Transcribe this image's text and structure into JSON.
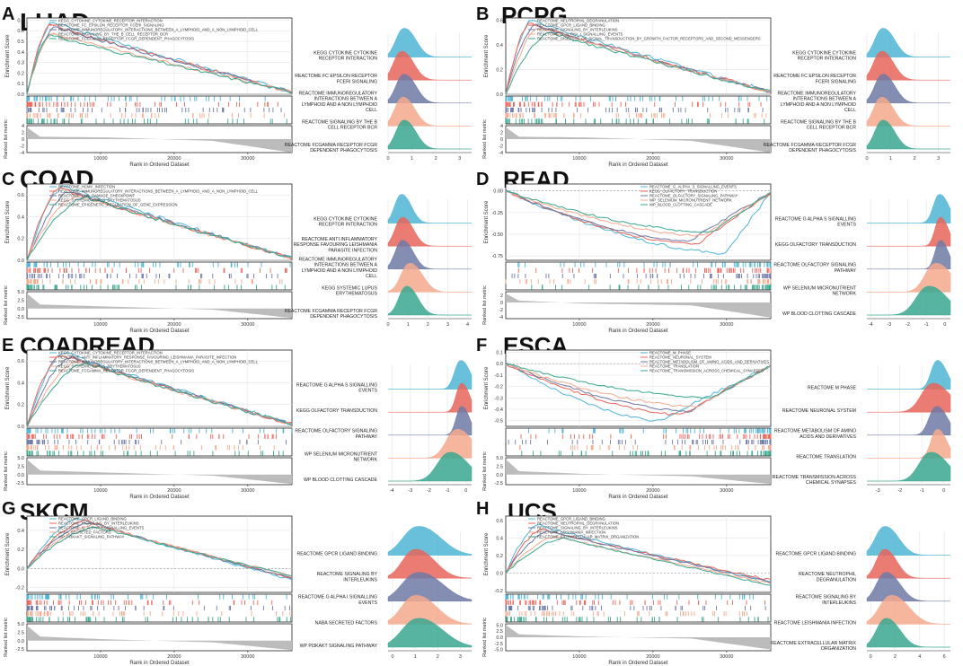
{
  "colors": {
    "palette": [
      "#4fb5d5",
      "#e8655a",
      "#6e7aa6",
      "#f4a98d",
      "#3aa78f"
    ],
    "grid": "#e3e3e3",
    "metric": "#bcbcbc"
  },
  "common": {
    "es_label": "Enrichment Score",
    "rl_label": "Ranked list metric",
    "x_label": "Rank in Ordered Dataset",
    "x_ticks": [
      10000,
      20000,
      30000
    ],
    "x_max": 36000
  },
  "chart_data": [
    {
      "letter": "A",
      "title": "LUAD",
      "type": "line",
      "es_ticks": [
        "0.7",
        "0.6",
        "0.5",
        "0.4",
        "0.3",
        "0.2",
        "0.1",
        "0.0"
      ],
      "es_range": [
        0,
        0.72
      ],
      "rl_ticks": [
        "4",
        "2",
        "0",
        "-2",
        "-4"
      ],
      "rl_range": [
        -4,
        4
      ],
      "metric_profile": [
        3.5,
        0.7,
        0.5,
        -0.5,
        -4
      ],
      "series": [
        {
          "name": "KEGG_CYTOKINE_CYTOKINE_RECEPTOR_INTERACTION",
          "ridge_label": "KEGG CYTOKINE CYTOKINE RECEPTOR INTERACTION",
          "peak": 0.68,
          "peak_at": 3500,
          "end": 0.02,
          "ridge_center": 0.6,
          "ridge_width": 0.35
        },
        {
          "name": "REACTOME_FC_EPSILON_RECEPTOR_FCERI_SIGNALING",
          "ridge_label": "REACTOME FC EPSILON RECEPTOR FCERI SIGNALING",
          "peak": 0.66,
          "peak_at": 3200,
          "end": 0.02,
          "ridge_center": 0.5,
          "ridge_width": 0.35
        },
        {
          "name": "REACTOME_IMMUNOREGULATORY_INTERACTIONS_BETWEEN_A_LYMPHOID_AND_A_NON_LYMPHOID_CELL",
          "ridge_label": "REACTOME IMMUNOREGULATORY INTERACTIONS BETWEEN A LYMPHOID AND A NON LYMPHOID CELL",
          "peak": 0.64,
          "peak_at": 3800,
          "end": 0.02,
          "ridge_center": 0.6,
          "ridge_width": 0.35
        },
        {
          "name": "REACTOME_SIGNALING_BY_THE_B_CELL_RECEPTOR_BCR",
          "ridge_label": "REACTOME SIGNALING BY THE B CELL RECEPTOR BCR",
          "peak": 0.58,
          "peak_at": 3500,
          "end": 0.02,
          "ridge_center": 0.55,
          "ridge_width": 0.35
        },
        {
          "name": "REACTOME_FCGAMMA_RECEPTOR_FCGR_DEPENDENT_PHAGOCYTOSIS",
          "ridge_label": "REACTOME FCGAMMA RECEPTOR FCGR DEPENDENT PHAGOCYTOSIS",
          "peak": 0.56,
          "peak_at": 3000,
          "end": 0.02,
          "ridge_center": 0.6,
          "ridge_width": 0.35
        }
      ],
      "ridge_ticks": [
        "0",
        "1",
        "2",
        "3"
      ],
      "ridge_range": [
        0,
        3.5
      ]
    },
    {
      "letter": "B",
      "title": "PCPG",
      "type": "line",
      "es_ticks": [
        "0.6",
        "0.4",
        "0.2",
        "0.0"
      ],
      "es_range": [
        0,
        0.62
      ],
      "rl_ticks": [
        "4",
        "2",
        "0",
        "-2",
        "-4"
      ],
      "rl_range": [
        -4,
        4
      ],
      "metric_profile": [
        3.5,
        0.7,
        0.5,
        -0.5,
        -4
      ],
      "series": [
        {
          "name": "REACTOME_NEUTROPHIL_DEGRANULATION",
          "ridge_label": "KEGG CYTOKINE CYTOKINE RECEPTOR INTERACTION",
          "peak": 0.6,
          "peak_at": 3500,
          "end": 0.02,
          "ridge_center": 0.6,
          "ridge_width": 0.35
        },
        {
          "name": "REACTOME_GPCR_LIGAND_BINDING",
          "ridge_label": "REACTOME FC EPSILON RECEPTOR FCERI SIGNALING",
          "peak": 0.58,
          "peak_at": 3200,
          "end": 0.02,
          "ridge_center": 0.55,
          "ridge_width": 0.35
        },
        {
          "name": "REACTOME_SIGNALING_BY_INTERLEUKINS",
          "ridge_label": "REACTOME IMMUNOREGULATORY INTERACTIONS BETWEEN A LYMPHOID AND A NON LYMPHOID CELL",
          "peak": 0.56,
          "peak_at": 4000,
          "end": 0.02,
          "ridge_center": 0.6,
          "ridge_width": 0.35
        },
        {
          "name": "REACTOME_G_ALPHA_I_SIGNALLING_EVENTS",
          "ridge_label": "REACTOME SIGNALING BY THE B CELL RECEPTOR BCR",
          "peak": 0.54,
          "peak_at": 4500,
          "end": 0.02,
          "ridge_center": 0.55,
          "ridge_width": 0.35
        },
        {
          "name": "REACTOME_DISEASES_OF_SIGNAL_TRANSDUCTION_BY_GROWTH_FACTOR_RECEPTORS_AND_SECOND_MESSENGERS",
          "ridge_label": "REACTOME FCGAMMA RECEPTOR FCGR DEPENDENT PHAGOCYTOSIS",
          "peak": 0.5,
          "peak_at": 6000,
          "end": 0.02,
          "ridge_center": 0.6,
          "ridge_width": 0.35
        }
      ],
      "ridge_ticks": [
        "0",
        "1",
        "2",
        "3"
      ],
      "ridge_range": [
        0,
        3.5
      ]
    },
    {
      "letter": "C",
      "title": "COAD",
      "type": "line",
      "es_ticks": [
        "0.6",
        "0.4",
        "0.2",
        "0.0"
      ],
      "es_range": [
        0,
        0.7
      ],
      "rl_ticks": [
        "5.0",
        "2.5",
        "0.0",
        "-2.5"
      ],
      "rl_range": [
        -3,
        5
      ],
      "metric_profile": [
        4.5,
        1.2,
        0.6,
        -0.3,
        -2.8
      ],
      "series": [
        {
          "name": "REACTOME_HCMV_INFECTION",
          "ridge_label": "KEGG CYTOKINE CYTOKINE RECEPTOR INTERACTION",
          "peak": 0.68,
          "peak_at": 5000,
          "end": 0.02,
          "ridge_center": 0.6,
          "ridge_width": 0.35
        },
        {
          "name": "REACTOME_IMMUNOREGULATORY_INTERACTIONS_BETWEEN_A_LYMPHOID_AND_A_NON_LYMPHOID_CELL",
          "ridge_label": "REACTOME ANTI INFLAMMATORY RESPONSE FAVOURING LEISHMANIA PARASITE INFECTION",
          "peak": 0.66,
          "peak_at": 4500,
          "end": 0.02,
          "ridge_center": 0.65,
          "ridge_width": 0.38
        },
        {
          "name": "REACTOME_DNA_DAMAGE_CHECKPOINT",
          "ridge_label": "REACTOME IMMUNOREGULATORY INTERACTIONS BETWEEN A LYMPHOID AND A NON LYMPHOID CELL",
          "peak": 0.64,
          "peak_at": 6000,
          "end": 0.02,
          "ridge_center": 0.65,
          "ridge_width": 0.38
        },
        {
          "name": "KEGG_SYSTEMIC_LUPUS_ERYTHEMATOSUS",
          "ridge_label": "KEGG SYSTEMIC LUPUS ERYTHEMATOSUS",
          "peak": 0.6,
          "peak_at": 7000,
          "end": 0.02,
          "ridge_center": 1.0,
          "ridge_width": 0.45
        },
        {
          "name": "REACTOME_EPIGENETIC_REGULATION_OF_GENE_EXPRESSION",
          "ridge_label": "REACTOME FCGAMMA RECEPTOR FCGR DEPENDENT PHAGOCYTOSIS",
          "peak": 0.58,
          "peak_at": 8000,
          "end": 0.02,
          "ridge_center": 0.85,
          "ridge_width": 0.4
        }
      ],
      "ridge_ticks": [
        "0",
        "1",
        "2",
        "3",
        "4"
      ],
      "ridge_range": [
        0,
        4.2
      ]
    },
    {
      "letter": "D",
      "title": "READ",
      "type": "line",
      "es_ticks": [
        "0.00",
        "-0.25",
        "-0.50",
        "-0.75"
      ],
      "es_range": [
        -0.8,
        0.08
      ],
      "rl_ticks": [
        "2",
        "0",
        "-2",
        "-4"
      ],
      "rl_range": [
        -4.5,
        3
      ],
      "metric_profile": [
        2.5,
        0.5,
        -0.3,
        -0.8,
        -4.2
      ],
      "negative": true,
      "series": [
        {
          "name": "REACTOME_G_ALPHA_S_SIGNALLING_EVENTS",
          "ridge_label": "REACTOME G ALPHA S SIGNALLING EVENTS",
          "peak": -0.72,
          "peak_at": 30000,
          "end": -0.02,
          "ridge_center": -0.35,
          "ridge_width": 0.35
        },
        {
          "name": "KEGG_OLFACTORY_TRANSDUCTION",
          "ridge_label": "KEGG OLFACTORY TRANSDUCTION",
          "peak": -0.62,
          "peak_at": 26000,
          "end": -0.02,
          "ridge_center": -0.3,
          "ridge_width": 0.3
        },
        {
          "name": "REACTOME_OLFACTORY_SIGNALING_PATHWAY",
          "ridge_label": "REACTOME OLFACTORY SIGNALING PATHWAY",
          "peak": -0.58,
          "peak_at": 25000,
          "end": -0.02,
          "ridge_center": -0.3,
          "ridge_width": 0.3
        },
        {
          "name": "WP_SELENIUM_MICRONUTRIENT_NETWORK",
          "ridge_label": "WP SELENIUM MICRONUTRIENT NETWORK",
          "peak": -0.52,
          "peak_at": 27000,
          "end": -0.02,
          "ridge_center": -0.6,
          "ridge_width": 0.6
        },
        {
          "name": "WP_BLOOD_CLOTTING_CASCADE",
          "ridge_label": "WP BLOOD CLOTTING CASCADE",
          "peak": -0.48,
          "peak_at": 28000,
          "end": -0.02,
          "ridge_center": -1.0,
          "ridge_width": 0.7
        }
      ],
      "ridge_ticks": [
        "-4",
        "-3",
        "-2",
        "-1",
        "0"
      ],
      "ridge_range": [
        -4.2,
        0.3
      ]
    },
    {
      "letter": "E",
      "title": "COADREAD",
      "type": "line",
      "es_ticks": [
        "0.6",
        "0.4",
        "0.2",
        "0.0"
      ],
      "es_range": [
        0,
        0.7
      ],
      "rl_ticks": [
        "5.0",
        "2.5",
        "0.0",
        "-2.5"
      ],
      "rl_range": [
        -3,
        5
      ],
      "metric_profile": [
        4.5,
        1.2,
        0.6,
        -0.3,
        -2.8
      ],
      "series": [
        {
          "name": "KEGG_CYTOKINE_CYTOKINE_RECEPTOR_INTERACTION",
          "ridge_label": "REACTOME G ALPHA S SIGNALLING EVENTS",
          "peak": 0.68,
          "peak_at": 5000,
          "end": 0.02,
          "ridge_center": -0.35,
          "ridge_width": 0.35
        },
        {
          "name": "REACTOME_ANTI_INFLAMMATORY_RESPONSE_FAVOURING_LEISHMANIA_PARASITE_INFECTION",
          "ridge_label": "KEGG OLFACTORY TRANSDUCTION",
          "peak": 0.66,
          "peak_at": 4500,
          "end": 0.02,
          "ridge_center": -0.3,
          "ridge_width": 0.3
        },
        {
          "name": "REACTOME_IMMUNOREGULATORY_INTERACTIONS_BETWEEN_A_LYMPHOID_AND_A_NON_LYMPHOID_CELL",
          "ridge_label": "REACTOME OLFACTORY SIGNALING PATHWAY",
          "peak": 0.64,
          "peak_at": 6000,
          "end": 0.02,
          "ridge_center": -0.3,
          "ridge_width": 0.3
        },
        {
          "name": "KEGG_SYSTEMIC_LUPUS_ERYTHEMATOSUS",
          "ridge_label": "WP SELENIUM MICRONUTRIENT NETWORK",
          "peak": 0.6,
          "peak_at": 7000,
          "end": 0.02,
          "ridge_center": -0.6,
          "ridge_width": 0.6
        },
        {
          "name": "REACTOME_FCGAMMA_RECEPTOR_FCGR_DEPENDENT_PHAGOCYTOSIS",
          "ridge_label": "WP BLOOD CLOTTING CASCADE",
          "peak": 0.58,
          "peak_at": 8000,
          "end": 0.02,
          "ridge_center": -1.0,
          "ridge_width": 0.7
        }
      ],
      "ridge_ticks": [
        "-4",
        "-3",
        "-2",
        "-1",
        "0"
      ],
      "ridge_range": [
        -4.2,
        0.3
      ]
    },
    {
      "letter": "F",
      "title": "ESCA",
      "type": "line",
      "es_ticks": [
        "0.1",
        "0.0",
        "-0.1",
        "-0.2",
        "-0.3",
        "-0.4",
        "-0.5"
      ],
      "es_range": [
        -0.55,
        0.12
      ],
      "rl_ticks": [
        "5.0",
        "2.5",
        "0.0",
        "-2.5"
      ],
      "rl_range": [
        -3,
        5
      ],
      "metric_profile": [
        4.5,
        1.0,
        0.2,
        -0.5,
        -2.8
      ],
      "negative": true,
      "series": [
        {
          "name": "REACTOME_M_PHASE",
          "ridge_label": "REACTOME M PHASE",
          "peak": -0.5,
          "peak_at": 21000,
          "end": -0.02,
          "ridge_center": -0.35,
          "ridge_width": 0.3
        },
        {
          "name": "REACTOME_NEURONAL_SYSTEM",
          "ridge_label": "REACTOME NEURONAL SYSTEM",
          "peak": -0.45,
          "peak_at": 24000,
          "end": -0.02,
          "ridge_center": -0.6,
          "ridge_width": 0.55
        },
        {
          "name": "REACTOME_METABOLISM_OF_AMINO_ACIDS_AND_DERIVATIVES",
          "ridge_label": "REACTOME METABOLISM OF AMINO ACIDS AND DERIVATIVES",
          "peak": -0.42,
          "peak_at": 25000,
          "end": -0.02,
          "ridge_center": -0.4,
          "ridge_width": 0.35
        },
        {
          "name": "REACTOME_TRANSLATION",
          "ridge_label": "REACTOME TRANSLATION",
          "peak": -0.38,
          "peak_at": 26000,
          "end": -0.02,
          "ridge_center": -0.35,
          "ridge_width": 0.3
        },
        {
          "name": "REACTOME_TRANSMISSION_ACROSS_CHEMICAL_SYNAPSES",
          "ridge_label": "REACTOME TRANSMISSION ACROSS CHEMICAL SYNAPSES",
          "peak": -0.3,
          "peak_at": 28000,
          "end": -0.02,
          "ridge_center": -0.7,
          "ridge_width": 0.55
        }
      ],
      "ridge_ticks": [
        "-3",
        "-2",
        "-1",
        "0"
      ],
      "ridge_range": [
        -3.5,
        0.3
      ]
    },
    {
      "letter": "G",
      "title": "SKCM",
      "type": "line",
      "es_ticks": [
        "0.4",
        "0.2",
        "0.0",
        "-0.2"
      ],
      "es_range": [
        -0.25,
        0.55
      ],
      "rl_ticks": [
        "5.0",
        "2.5",
        "0.0",
        "-2.5"
      ],
      "rl_range": [
        -3,
        5
      ],
      "metric_profile": [
        4.5,
        1.2,
        0.4,
        -0.5,
        -2.8
      ],
      "series": [
        {
          "name": "REACTOME_GPCR_LIGAND_BINDING",
          "ridge_label": "REACTOME GPCR LIGAND BINDING",
          "peak": 0.52,
          "peak_at": 7000,
          "end": -0.12,
          "ridge_center": 1.0,
          "ridge_width": 0.7
        },
        {
          "name": "REACTOME_SIGNALING_BY_INTERLEUKINS",
          "ridge_label": "REACTOME SIGNALING BY INTERLEUKINS",
          "peak": 0.5,
          "peak_at": 8000,
          "end": -0.1,
          "ridge_center": 0.9,
          "ridge_width": 0.6
        },
        {
          "name": "REACTOME_G_ALPHA_I_SIGNALLING_EVENTS",
          "ridge_label": "REACTOME G ALPHA I SIGNALLING EVENTS",
          "peak": 0.48,
          "peak_at": 8500,
          "end": -0.1,
          "ridge_center": 1.0,
          "ridge_width": 0.75
        },
        {
          "name": "NABA_SECRETED_FACTORS",
          "ridge_label": "NABA SECRETED FACTORS",
          "peak": 0.46,
          "peak_at": 9000,
          "end": -0.08,
          "ridge_center": 0.9,
          "ridge_width": 0.65
        },
        {
          "name": "WP_PI3KAKT_SIGNALING_PATHWAY",
          "ridge_label": "WP PI3KAKT SIGNALING PATHWAY",
          "peak": 0.44,
          "peak_at": 9500,
          "end": -0.08,
          "ridge_center": 1.0,
          "ridge_width": 0.75
        }
      ],
      "ridge_ticks": [
        "0",
        "1",
        "2",
        "3"
      ],
      "ridge_range": [
        -0.2,
        3.5
      ]
    },
    {
      "letter": "H",
      "title": "UCS",
      "type": "line",
      "es_ticks": [
        "0.6",
        "0.4",
        "0.2",
        "0.0",
        "-0.2"
      ],
      "es_range": [
        -0.22,
        0.65
      ],
      "rl_ticks": [
        "5.0",
        "2.5",
        "0.0",
        "-2.5",
        "-5.0"
      ],
      "rl_range": [
        -5.5,
        5.5
      ],
      "metric_profile": [
        5,
        1.2,
        0.3,
        -0.5,
        -5
      ],
      "series": [
        {
          "name": "REACTOME_GPCR_LIGAND_BINDING",
          "ridge_label": "REACTOME GPCR LIGAND BINDING",
          "peak": 0.55,
          "peak_at": 4500,
          "end": -0.1,
          "ridge_center": 1.0,
          "ridge_width": 0.8
        },
        {
          "name": "REACTOME_NEUTROPHIL_DEGRANULATION",
          "ridge_label": "REACTOME NEUTROPHIL DEGRANULATION",
          "peak": 0.5,
          "peak_at": 5000,
          "end": -0.08,
          "ridge_center": 1.0,
          "ridge_width": 0.7
        },
        {
          "name": "REACTOME_SIGNALING_BY_INTERLEUKINS",
          "ridge_label": "REACTOME SIGNALING BY INTERLEUKINS",
          "peak": 0.48,
          "peak_at": 6000,
          "end": -0.1,
          "ridge_center": 1.1,
          "ridge_width": 0.8
        },
        {
          "name": "REACTOME_LEISHMANIA_INFECTION",
          "ridge_label": "REACTOME LEISHMANIA INFECTION",
          "peak": 0.42,
          "peak_at": 7000,
          "end": -0.12,
          "ridge_center": 1.5,
          "ridge_width": 1.0
        },
        {
          "name": "REACTOME_EXTRACELLULAR_MATRIX_ORGANIZATION",
          "ridge_label": "REACTOME EXTRACELLULAR MATRIX ORGANIZATION",
          "peak": 0.4,
          "peak_at": 8000,
          "end": -0.14,
          "ridge_center": 1.1,
          "ridge_width": 0.8
        }
      ],
      "ridge_ticks": [
        "0",
        "2",
        "4",
        "6"
      ],
      "ridge_range": [
        -0.3,
        6.5
      ]
    }
  ]
}
